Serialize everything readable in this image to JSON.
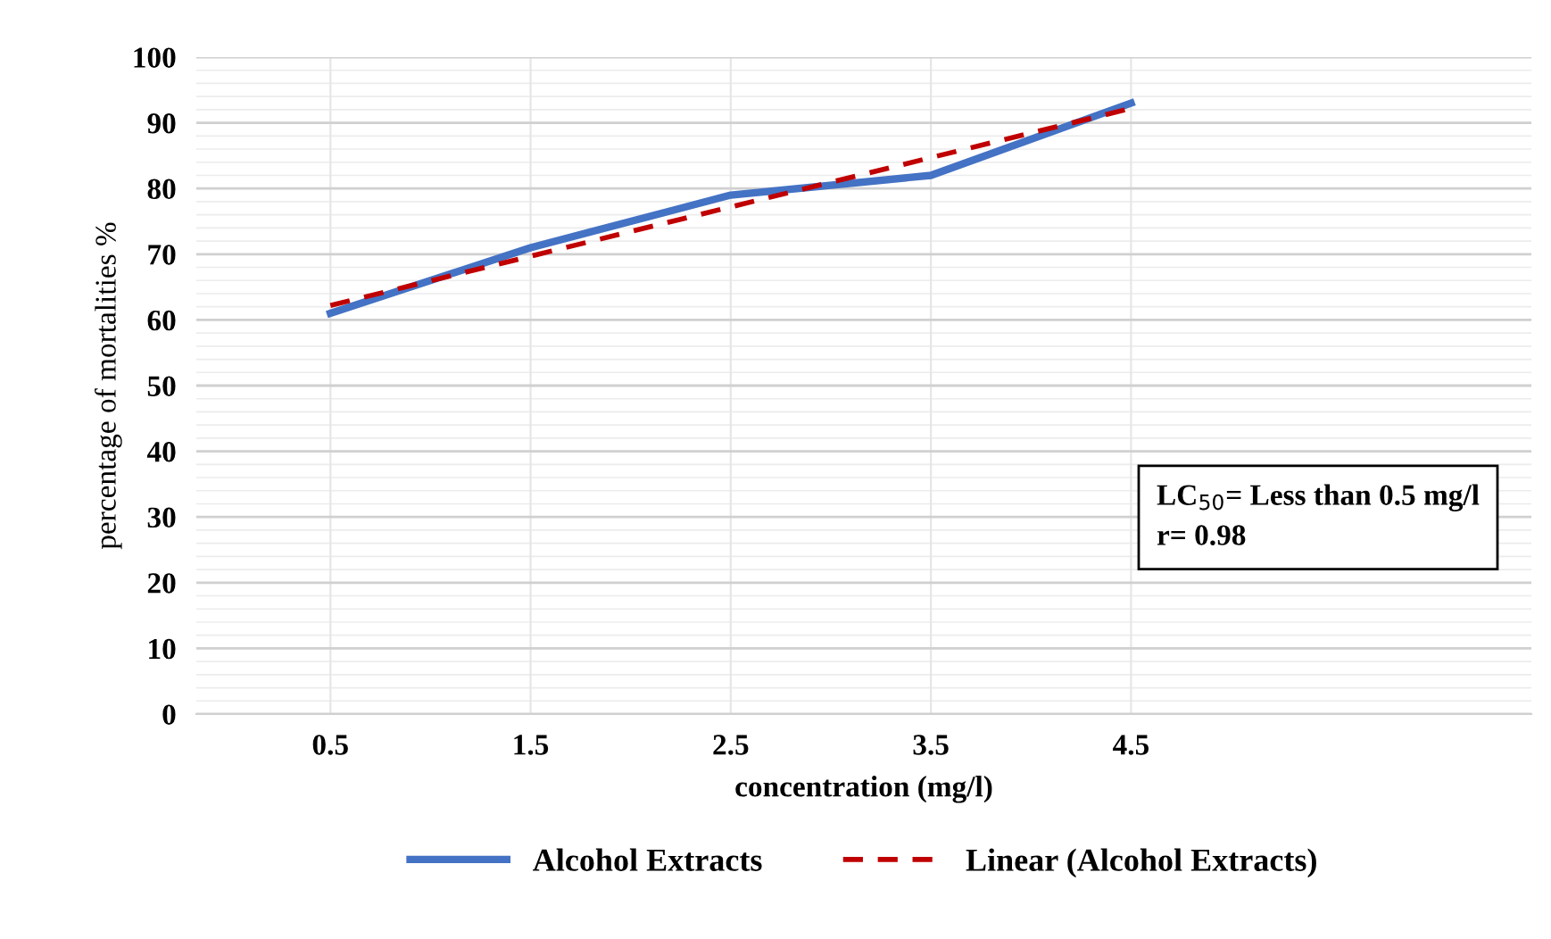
{
  "chart_data": {
    "type": "line",
    "xlabel": "concentration (mg/l)",
    "ylabel": "percentage of mortalities %",
    "categories": [
      "0.5",
      "1.5",
      "2.5",
      "3.5",
      "4.5"
    ],
    "series": [
      {
        "name": "Alcohol Extracts",
        "color": "#4472c4",
        "values": [
          61,
          71,
          79,
          82,
          93
        ],
        "line_style": "solid"
      },
      {
        "name": "Linear (Alcohol Extracts)",
        "color": "#c00000",
        "values": [
          62.2,
          69.7,
          77.2,
          84.7,
          92.2
        ],
        "line_style": "dashed"
      }
    ],
    "ylim": [
      0,
      100
    ],
    "yticks": [
      0,
      10,
      20,
      30,
      40,
      50,
      60,
      70,
      80,
      90,
      100
    ],
    "grid": true,
    "legend": "bottom",
    "marker": "none",
    "annotations": [
      "LC$_{50}$= Less than 0.5 mg/l",
      "r= 0.98"
    ]
  }
}
